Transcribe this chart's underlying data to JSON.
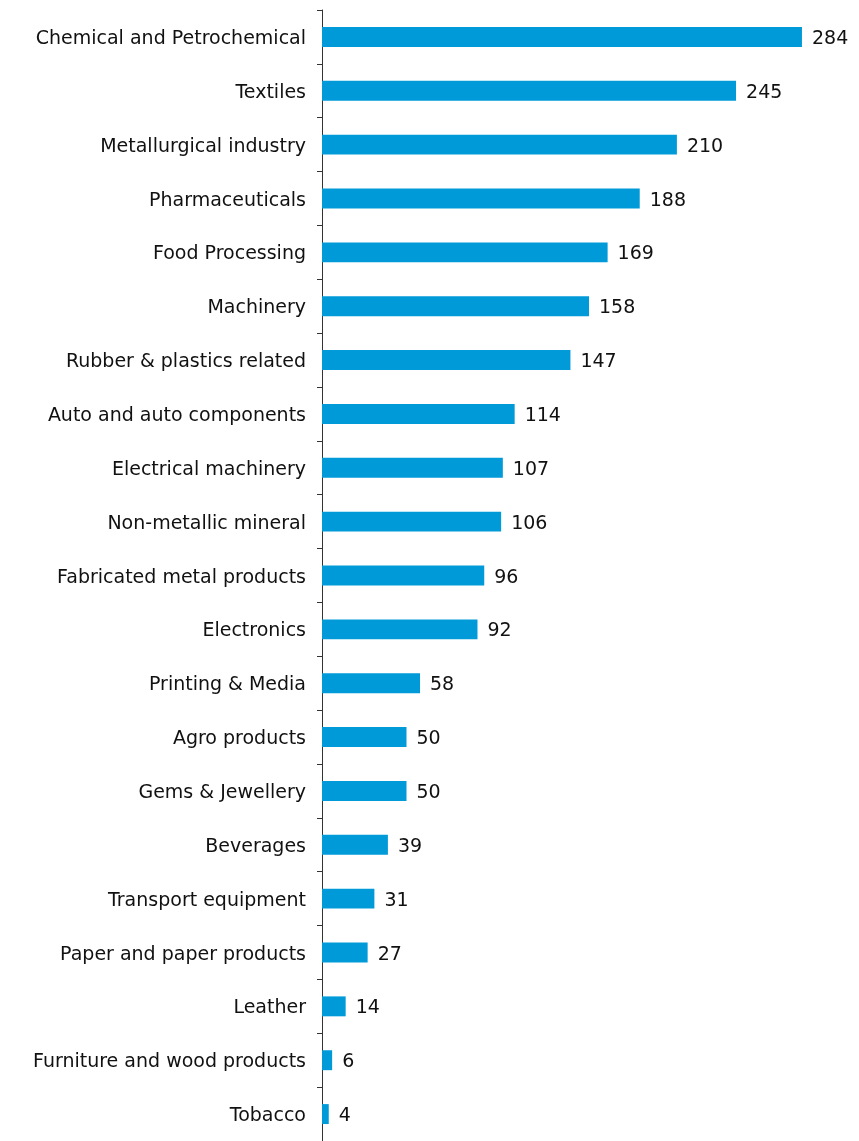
{
  "chart_data": {
    "type": "bar",
    "orientation": "horizontal",
    "data_labels": true,
    "tick_labels": "y",
    "categories": [
      "Chemical and Petrochemical",
      "Textiles",
      "Metallurgical industry",
      "Pharmaceuticals",
      "Food Processing",
      "Machinery",
      "Rubber & plastics related",
      "Auto and auto components",
      "Electrical machinery",
      "Non-metallic mineral",
      "Fabricated metal products",
      "Electronics",
      "Printing & Media",
      "Agro products",
      "Gems & Jewellery",
      "Beverages",
      "Transport equipment",
      "Paper and paper products",
      "Leather",
      "Furniture and wood products",
      "Tobacco"
    ],
    "values": [
      284,
      245,
      210,
      188,
      169,
      158,
      147,
      114,
      107,
      106,
      96,
      92,
      58,
      50,
      50,
      39,
      31,
      27,
      14,
      6,
      4
    ],
    "color": "#009ad8"
  }
}
